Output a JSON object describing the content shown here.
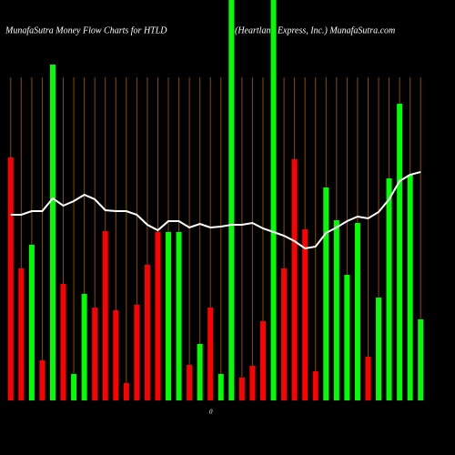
{
  "chart_data": {
    "type": "bar",
    "title": "MunafaSutra  Money Flow  Charts for HTLD",
    "subtitle": "(Heartland Express, Inc.) MunafaSutra.com",
    "annotation": "0",
    "categories": [
      null,
      null,
      null,
      null,
      null,
      null,
      null,
      null,
      null,
      null,
      null,
      null,
      null,
      null,
      null,
      null,
      null,
      null,
      null,
      null,
      null,
      null,
      null,
      null,
      null,
      null,
      null,
      null,
      null,
      null,
      null,
      null,
      null,
      null,
      null,
      null,
      null,
      null,
      null,
      null
    ],
    "values": [
      267,
      145,
      171,
      44,
      369,
      128,
      29,
      117,
      102,
      186,
      99,
      19,
      105,
      149,
      185,
      185,
      185,
      39,
      62,
      102,
      29,
      440,
      25,
      38,
      87,
      440,
      145,
      265,
      188,
      32,
      234,
      198,
      138,
      195,
      48,
      113,
      244,
      326,
      248,
      89
    ],
    "colors": [
      "#ff0000",
      "#ff0000",
      "#00ff00",
      "#ff0000",
      "#00ff00",
      "#ff0000",
      "#00ff00",
      "#00ff00",
      "#ff0000",
      "#ff0000",
      "#ff0000",
      "#ff0000",
      "#ff0000",
      "#ff0000",
      "#ff0000",
      "#00ff00",
      "#00ff00",
      "#ff0000",
      "#00ff00",
      "#ff0000",
      "#00ff00",
      "#00ff00",
      "#ff0000",
      "#ff0000",
      "#ff0000",
      "#00ff00",
      "#ff0000",
      "#ff0000",
      "#ff0000",
      "#ff0000",
      "#00ff00",
      "#00ff00",
      "#00ff00",
      "#00ff00",
      "#ff0000",
      "#00ff00",
      "#00ff00",
      "#00ff00",
      "#00ff00",
      "#00ff00"
    ],
    "line": {
      "color": "#ffffff",
      "values": [
        204,
        204,
        208,
        208,
        222,
        214,
        219,
        226,
        221,
        209,
        208,
        208,
        204,
        193,
        187,
        197,
        197,
        190,
        194,
        190,
        191,
        193,
        193,
        195,
        189,
        185,
        181,
        175,
        167,
        169,
        184,
        190,
        197,
        202,
        200,
        207,
        221,
        241,
        248,
        251
      ]
    },
    "grid_color": "#8b4a00",
    "ylim": [
      0,
      440
    ],
    "grid": true
  }
}
